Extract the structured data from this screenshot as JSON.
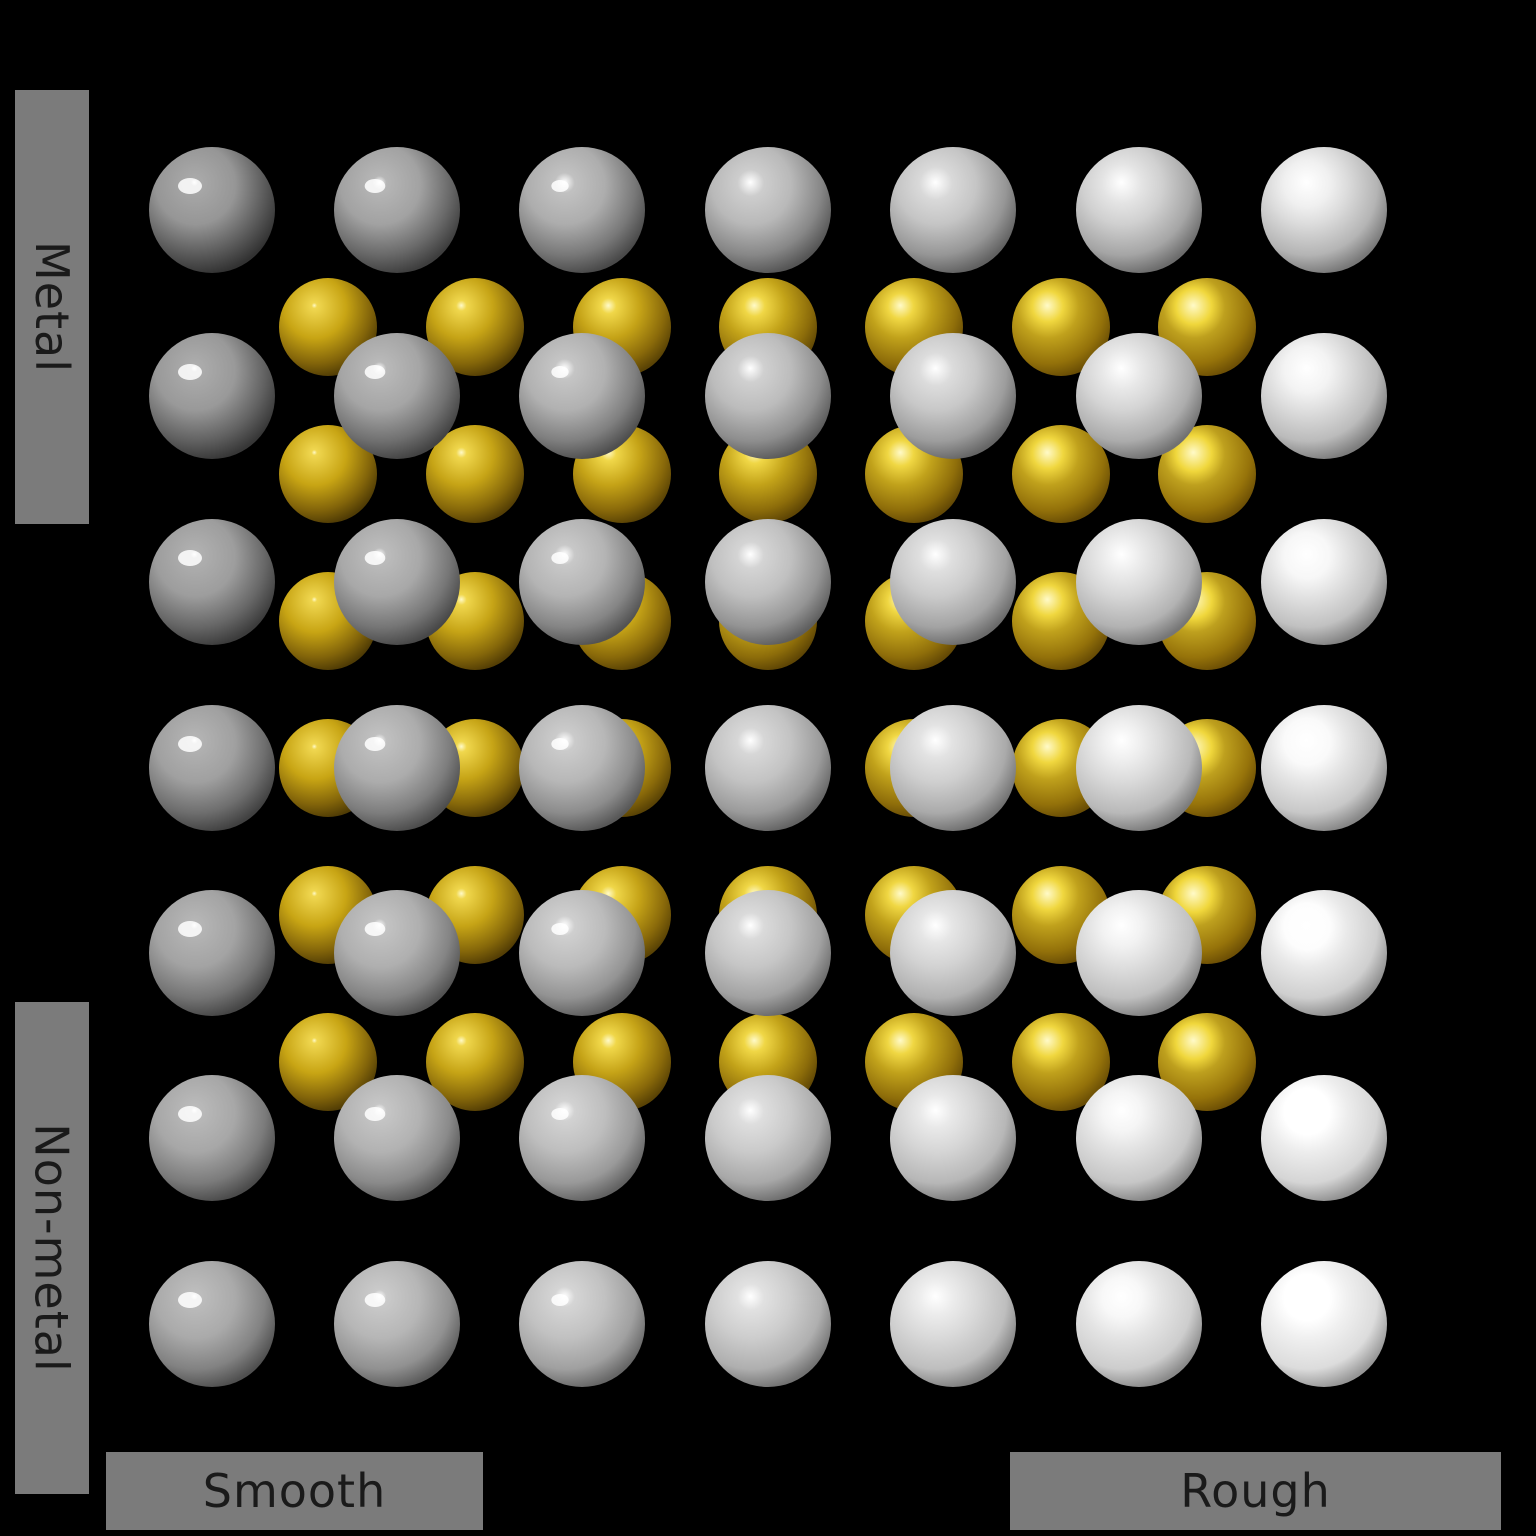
{
  "labels": {
    "metal": "Metal",
    "non_metal": "Non-metal",
    "smooth": "Smooth",
    "rough": "Rough"
  },
  "colors": {
    "background": "#000000",
    "label_bar": "#7b7b7b",
    "label_text": "#1a1a1a",
    "silver": "#c8c8c8",
    "gold": "#c9a81a"
  },
  "grid": {
    "silver_columns": 7,
    "silver_rows": 7,
    "gold_columns": 7,
    "gold_rows": 6
  }
}
